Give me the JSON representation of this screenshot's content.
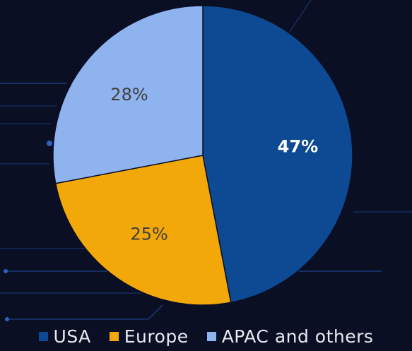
{
  "colors": {
    "background": "#0a0f24",
    "decor_line": "#1b3a78",
    "decor_dot": "#2f62b8",
    "slice_border": "#0a0f24"
  },
  "chart_data": {
    "type": "pie",
    "title": "",
    "start_angle_deg": 0,
    "direction": "clockwise",
    "legend_position": "bottom",
    "slices": [
      {
        "label": "USA",
        "value": 47,
        "value_label": "47%",
        "color": "#0d4a93",
        "label_color": "#ffffff",
        "label_bold": true
      },
      {
        "label": "Europe",
        "value": 25,
        "value_label": "25%",
        "color": "#f3a80a",
        "label_color": "#3f3f3f",
        "label_bold": false
      },
      {
        "label": "APAC and others",
        "value": 28,
        "value_label": "28%",
        "color": "#8fb3ee",
        "label_color": "#3f3f3f",
        "label_bold": false
      }
    ]
  },
  "legend": {
    "items": [
      {
        "label": "USA",
        "color": "#0d4a93"
      },
      {
        "label": "Europe",
        "color": "#f3a80a"
      },
      {
        "label": "APAC and others",
        "color": "#8fb3ee"
      }
    ]
  }
}
